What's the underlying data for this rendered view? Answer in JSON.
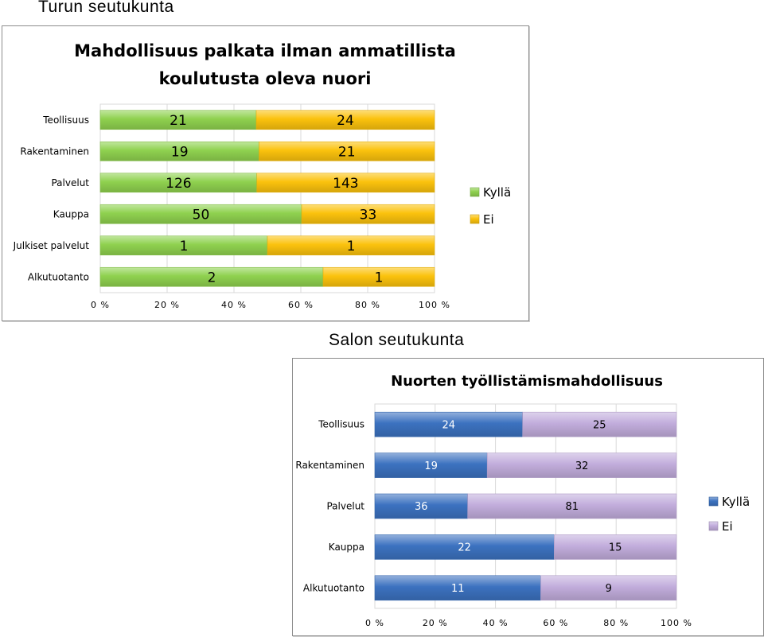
{
  "labels": {
    "turku": "Turun seutukunta",
    "salo": "Salon seutukunta"
  },
  "chart_data": [
    {
      "type": "bar",
      "orientation": "horizontal",
      "stacked": "percent",
      "title_lines": [
        "Mahdollisuus palkata ilman ammatillista",
        "koulutusta oleva nuori"
      ],
      "categories": [
        "Teollisuus",
        "Rakentaminen",
        "Palvelut",
        "Kauppa",
        "Julkiset palvelut",
        "Alkutuotanto"
      ],
      "series": [
        {
          "name": "Kyllä",
          "values": [
            21,
            19,
            126,
            50,
            1,
            2
          ],
          "color": "#8fd14f"
        },
        {
          "name": "Ei",
          "values": [
            24,
            21,
            143,
            33,
            1,
            1
          ],
          "color": "#fbc20d"
        }
      ],
      "x_ticks": [
        "0 %",
        "20 %",
        "40 %",
        "60 %",
        "80 %",
        "100 %"
      ],
      "xlim": [
        0,
        100
      ],
      "legend_position": "right",
      "grid": true
    },
    {
      "type": "bar",
      "orientation": "horizontal",
      "stacked": "percent",
      "title_lines": [
        "Nuorten työllistämismahdollisuus"
      ],
      "categories": [
        "Teollisuus",
        "Rakentaminen",
        "Palvelut",
        "Kauppa",
        "Alkutuotanto"
      ],
      "series": [
        {
          "name": "Kyllä",
          "values": [
            24,
            19,
            36,
            22,
            11
          ],
          "color": "#3c72c0"
        },
        {
          "name": "Ei",
          "values": [
            25,
            32,
            81,
            15,
            9
          ],
          "color": "#c2addc"
        }
      ],
      "x_ticks": [
        "0 %",
        "20 %",
        "40 %",
        "60 %",
        "80 %",
        "100 %"
      ],
      "xlim": [
        0,
        100
      ],
      "legend_position": "right",
      "grid": true
    }
  ]
}
